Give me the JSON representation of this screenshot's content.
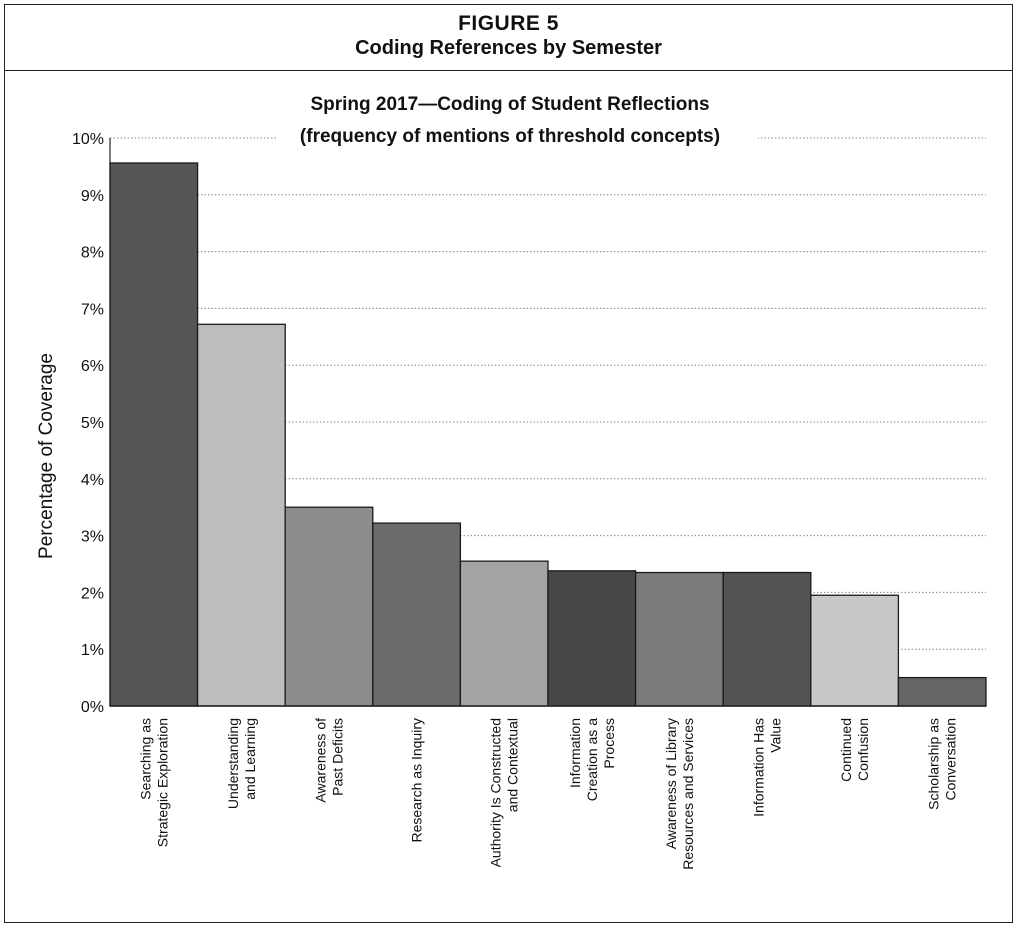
{
  "figure": {
    "label": "FIGURE 5",
    "title": "Coding References by Semester"
  },
  "chart_data": {
    "type": "bar",
    "title": "Spring 2017—Coding of Student Reflections",
    "subtitle": "(frequency of mentions of threshold concepts)",
    "xlabel": "",
    "ylabel": "Percentage of Coverage",
    "ylim": [
      0,
      10
    ],
    "yticks": [
      "0%",
      "1%",
      "2%",
      "3%",
      "4%",
      "5%",
      "6%",
      "7%",
      "8%",
      "9%",
      "10%"
    ],
    "grid": "horizontal-dotted",
    "categories": [
      [
        "Searching as",
        "Strategic Exploration"
      ],
      [
        "Understanding",
        "and Learning"
      ],
      [
        "Awareness of",
        "Past Deficits"
      ],
      [
        "Research as Inquiry"
      ],
      [
        "Authority Is Constructed",
        "and Contextual"
      ],
      [
        "Information",
        "Creation as a",
        "Process"
      ],
      [
        "Awareness of Library",
        "Resources and Services"
      ],
      [
        "Information Has",
        "Value"
      ],
      [
        "Continued",
        "Confusion"
      ],
      [
        "Scholarship as",
        "Conversation"
      ]
    ],
    "values": [
      9.56,
      6.72,
      3.5,
      3.22,
      2.55,
      2.38,
      2.35,
      2.35,
      1.95,
      0.5
    ],
    "colors": [
      "#555555",
      "#bdbdbd",
      "#8c8c8c",
      "#6b6b6b",
      "#a3a3a3",
      "#484848",
      "#7b7b7b",
      "#545454",
      "#c8c8c8",
      "#666666"
    ]
  }
}
